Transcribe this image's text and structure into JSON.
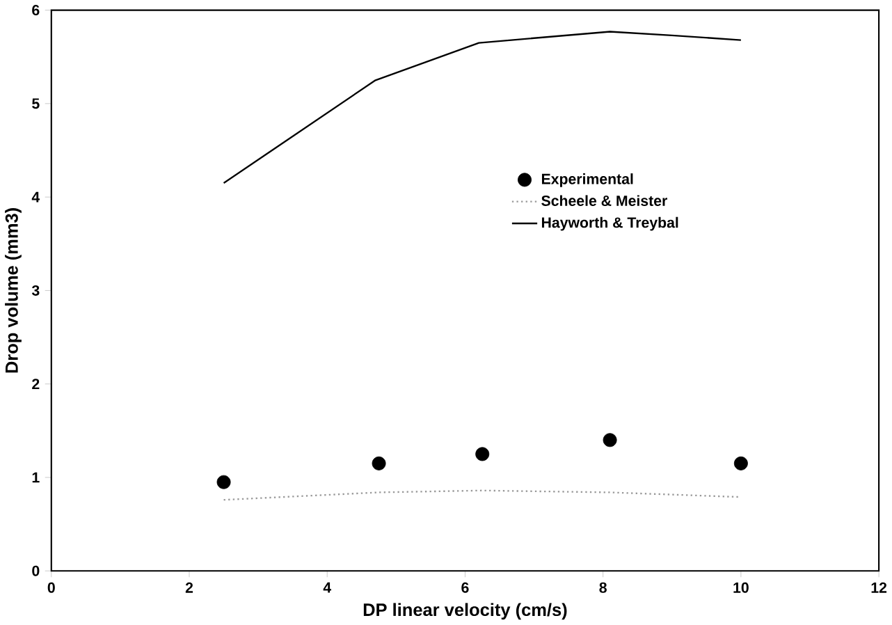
{
  "chart_data": {
    "type": "line",
    "xlabel": "DP linear velocity  (cm/s)",
    "ylabel": "Drop volume  (mm3)",
    "xlim": [
      0,
      12
    ],
    "ylim": [
      0,
      6
    ],
    "xticks": [
      0,
      2,
      4,
      6,
      8,
      10,
      12
    ],
    "yticks": [
      0,
      1,
      2,
      3,
      4,
      5,
      6
    ],
    "grid": false,
    "legend": "right",
    "series": [
      {
        "name": "Experimental",
        "type": "scatter",
        "marker": "circle",
        "color": "#000000",
        "x": [
          2.5,
          4.75,
          6.25,
          8.1,
          10
        ],
        "values": [
          0.95,
          1.15,
          1.25,
          1.4,
          1.15
        ]
      },
      {
        "name": "Scheele & Meister",
        "marker": "none",
        "line_style": "dotted",
        "color": "#999999",
        "x": [
          2.5,
          4.75,
          6.25,
          8.1,
          10
        ],
        "values": [
          0.76,
          0.84,
          0.86,
          0.84,
          0.79
        ]
      },
      {
        "name": "Hayworth & Treybal",
        "marker": "none",
        "line_style": "solid",
        "color": "#000000",
        "x": [
          2.5,
          3.2,
          4.7,
          6.2,
          8.1,
          9,
          10
        ],
        "values": [
          4.15,
          4.5,
          5.25,
          5.65,
          5.77,
          5.73,
          5.68
        ]
      }
    ]
  }
}
